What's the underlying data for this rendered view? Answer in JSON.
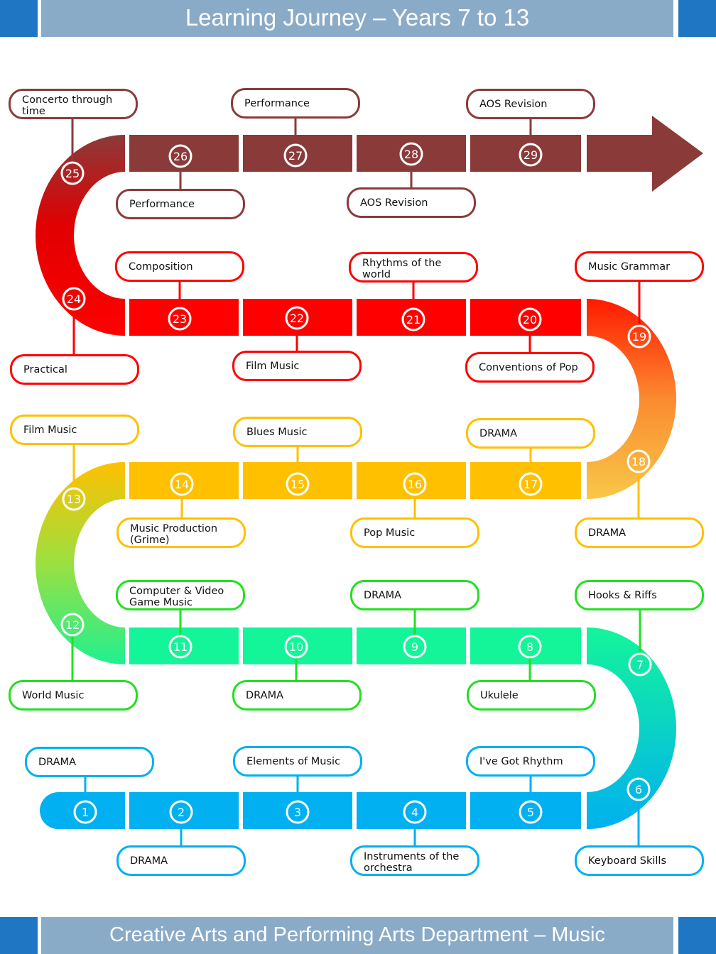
{
  "header": {
    "title": "Learning Journey –  Years 7 to 13"
  },
  "footer": {
    "title": "Creative Arts and Performing Arts Department – Music"
  },
  "colors": {
    "blue": "#00b0f0",
    "green": "#14f59a",
    "green_border": "#22e022",
    "yellow": "#ffc000",
    "red": "#ff0000",
    "brown": "#8b3a3a",
    "header_bar": "#8aabc8",
    "header_square": "#1f77c4"
  },
  "milestones": [
    {
      "n": "1",
      "label": "DRAMA"
    },
    {
      "n": "2",
      "label": "DRAMA"
    },
    {
      "n": "3",
      "label": "Elements of Music"
    },
    {
      "n": "4",
      "label": "Instruments of the orchestra"
    },
    {
      "n": "5",
      "label": "I've Got Rhythm"
    },
    {
      "n": "6",
      "label": "Keyboard Skills"
    },
    {
      "n": "7",
      "label": "Hooks & Riffs"
    },
    {
      "n": "8",
      "label": "Ukulele"
    },
    {
      "n": "9",
      "label": "DRAMA"
    },
    {
      "n": "10",
      "label": "DRAMA"
    },
    {
      "n": "11",
      "label": "Computer & Video Game Music"
    },
    {
      "n": "12",
      "label": "World Music"
    },
    {
      "n": "13",
      "label": "Film Music"
    },
    {
      "n": "14",
      "label": "Music Production (Grime)"
    },
    {
      "n": "15",
      "label": "Blues Music"
    },
    {
      "n": "16",
      "label": "Pop Music"
    },
    {
      "n": "17",
      "label": "DRAMA"
    },
    {
      "n": "18",
      "label": "DRAMA"
    },
    {
      "n": "19",
      "label": "Music Grammar"
    },
    {
      "n": "20",
      "label": "Conventions of Pop"
    },
    {
      "n": "21",
      "label": "Rhythms of the world"
    },
    {
      "n": "22",
      "label": "Film Music"
    },
    {
      "n": "23",
      "label": "Composition"
    },
    {
      "n": "24",
      "label": "Practical"
    },
    {
      "n": "25",
      "label": "Concerto through time"
    },
    {
      "n": "26",
      "label": "Performance"
    },
    {
      "n": "27",
      "label": "Performance"
    },
    {
      "n": "28",
      "label": "AOS Revision"
    },
    {
      "n": "29",
      "label": "AOS Revision"
    }
  ]
}
